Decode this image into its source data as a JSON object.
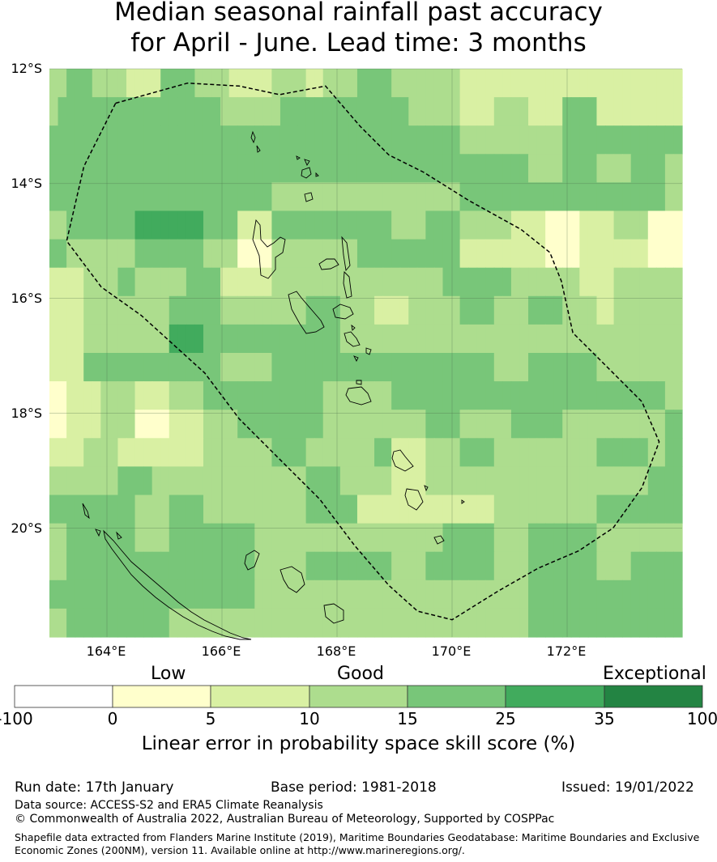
{
  "title": {
    "line1": "Median seasonal rainfall past accuracy",
    "line2": "for April - June. Lead time: 3 months"
  },
  "map": {
    "lat_labels": [
      "12°S",
      "14°S",
      "16°S",
      "18°S",
      "20°S"
    ],
    "lon_labels": [
      "164°E",
      "166°E",
      "168°E",
      "170°E",
      "172°E"
    ],
    "lon_range": [
      163.0,
      174.0
    ],
    "lat_range": [
      -21.9,
      -12.0
    ],
    "grid_rows": [
      [
        3,
        3,
        4,
        4,
        4,
        3,
        3,
        3,
        3,
        2,
        2,
        2,
        2,
        4,
        4,
        4,
        4,
        3,
        3,
        3,
        3,
        2,
        2,
        2,
        2,
        2,
        3,
        3,
        3,
        3,
        2,
        2,
        3,
        3,
        3,
        3,
        4,
        4,
        4,
        4,
        3,
        3,
        3,
        3,
        3,
        3,
        3,
        3,
        2,
        2,
        2,
        2,
        2,
        2,
        2,
        2,
        2,
        2,
        2,
        2,
        2,
        2,
        2,
        2,
        2,
        2,
        2,
        2,
        2,
        2,
        2,
        2,
        2,
        2
      ],
      [
        3,
        4,
        4,
        4,
        4,
        4,
        4,
        4,
        4,
        4,
        4,
        4,
        4,
        4,
        4,
        4,
        4,
        4,
        4,
        4,
        3,
        3,
        3,
        3,
        3,
        3,
        3,
        4,
        4,
        4,
        4,
        4,
        4,
        4,
        4,
        4,
        4,
        4,
        4,
        4,
        4,
        4,
        3,
        3,
        3,
        3,
        3,
        3,
        2,
        2,
        2,
        2,
        3,
        3,
        3,
        3,
        2,
        2,
        2,
        2,
        4,
        4,
        4,
        4,
        2,
        2,
        2,
        2,
        2,
        2,
        2,
        2,
        2,
        2
      ],
      [
        4,
        4,
        4,
        4,
        4,
        4,
        4,
        4,
        4,
        4,
        4,
        4,
        4,
        4,
        4,
        4,
        4,
        4,
        4,
        4,
        4,
        4,
        4,
        4,
        4,
        4,
        4,
        4,
        4,
        4,
        4,
        4,
        4,
        4,
        4,
        4,
        4,
        4,
        4,
        4,
        4,
        4,
        4,
        4,
        4,
        4,
        4,
        4,
        3,
        3,
        3,
        3,
        3,
        3,
        3,
        3,
        3,
        3,
        3,
        3,
        4,
        4,
        4,
        4,
        4,
        4,
        4,
        4,
        4,
        4,
        4,
        4,
        4,
        4
      ],
      [
        4,
        4,
        4,
        4,
        4,
        4,
        4,
        4,
        4,
        4,
        4,
        4,
        4,
        4,
        4,
        4,
        4,
        4,
        4,
        4,
        4,
        4,
        4,
        4,
        4,
        4,
        4,
        4,
        4,
        4,
        4,
        4,
        4,
        4,
        4,
        4,
        4,
        4,
        4,
        4,
        4,
        4,
        4,
        4,
        4,
        4,
        4,
        4,
        4,
        4,
        4,
        4,
        4,
        4,
        4,
        4,
        3,
        3,
        3,
        3,
        4,
        4,
        4,
        4,
        3,
        3,
        3,
        3,
        4,
        4,
        4,
        4,
        3,
        3
      ],
      [
        4,
        4,
        4,
        4,
        4,
        4,
        4,
        4,
        4,
        4,
        4,
        4,
        4,
        4,
        4,
        4,
        4,
        4,
        4,
        4,
        4,
        4,
        4,
        4,
        4,
        4,
        3,
        3,
        3,
        3,
        3,
        3,
        3,
        3,
        3,
        3,
        3,
        3,
        3,
        3,
        3,
        3,
        3,
        3,
        3,
        3,
        3,
        3,
        4,
        4,
        4,
        4,
        4,
        4,
        4,
        4,
        4,
        4,
        4,
        4,
        4,
        4,
        4,
        4,
        4,
        4,
        4,
        4,
        4,
        4,
        4,
        4,
        3,
        3
      ],
      [
        3,
        3,
        4,
        4,
        4,
        4,
        4,
        4,
        4,
        4,
        5,
        5,
        5,
        5,
        5,
        5,
        5,
        5,
        4,
        4,
        4,
        4,
        2,
        2,
        2,
        2,
        4,
        4,
        4,
        4,
        4,
        4,
        4,
        4,
        4,
        4,
        4,
        4,
        4,
        4,
        3,
        3,
        3,
        3,
        4,
        4,
        4,
        4,
        3,
        3,
        3,
        3,
        3,
        3,
        2,
        2,
        2,
        2,
        1,
        1,
        1,
        1,
        2,
        2,
        2,
        2,
        3,
        3,
        3,
        3,
        1,
        1,
        1,
        1
      ],
      [
        4,
        4,
        3,
        3,
        3,
        3,
        3,
        3,
        3,
        3,
        4,
        4,
        4,
        4,
        4,
        4,
        4,
        4,
        3,
        3,
        3,
        3,
        1,
        1,
        1,
        1,
        3,
        3,
        3,
        3,
        3,
        3,
        3,
        3,
        3,
        3,
        4,
        4,
        4,
        4,
        4,
        4,
        4,
        4,
        4,
        4,
        4,
        4,
        2,
        2,
        2,
        2,
        2,
        2,
        2,
        2,
        2,
        2,
        1,
        1,
        1,
        1,
        2,
        2,
        2,
        2,
        2,
        2,
        2,
        2,
        1,
        1,
        1,
        1
      ],
      [
        2,
        2,
        2,
        2,
        3,
        3,
        3,
        3,
        4,
        4,
        3,
        3,
        3,
        3,
        3,
        3,
        4,
        4,
        4,
        4,
        2,
        2,
        2,
        2,
        2,
        2,
        3,
        3,
        3,
        3,
        3,
        3,
        3,
        3,
        3,
        3,
        3,
        3,
        3,
        3,
        3,
        3,
        3,
        3,
        3,
        3,
        4,
        4,
        4,
        4,
        4,
        4,
        4,
        4,
        3,
        3,
        3,
        3,
        3,
        3,
        3,
        3,
        2,
        2,
        2,
        2,
        3,
        3,
        3,
        3,
        3,
        3,
        3,
        3
      ],
      [
        2,
        2,
        2,
        2,
        3,
        3,
        3,
        3,
        3,
        3,
        3,
        3,
        3,
        3,
        4,
        4,
        4,
        4,
        4,
        4,
        3,
        3,
        3,
        3,
        3,
        3,
        3,
        3,
        3,
        3,
        4,
        4,
        4,
        4,
        3,
        3,
        3,
        3,
        2,
        2,
        2,
        2,
        3,
        3,
        3,
        3,
        3,
        3,
        4,
        4,
        4,
        4,
        3,
        3,
        3,
        3,
        4,
        4,
        4,
        4,
        3,
        3,
        3,
        3,
        2,
        2,
        3,
        3,
        3,
        3,
        3,
        3,
        3,
        3
      ],
      [
        2,
        2,
        2,
        2,
        3,
        3,
        3,
        3,
        3,
        3,
        3,
        3,
        3,
        3,
        5,
        5,
        5,
        5,
        4,
        4,
        4,
        4,
        4,
        4,
        4,
        4,
        4,
        4,
        4,
        4,
        4,
        4,
        4,
        4,
        3,
        3,
        3,
        3,
        3,
        3,
        3,
        3,
        3,
        3,
        3,
        3,
        3,
        3,
        3,
        3,
        3,
        3,
        3,
        3,
        3,
        3,
        3,
        3,
        3,
        3,
        3,
        3,
        3,
        3,
        3,
        3,
        3,
        3,
        3,
        3,
        3,
        3,
        3,
        3
      ],
      [
        2,
        2,
        2,
        2,
        4,
        4,
        4,
        4,
        4,
        4,
        4,
        4,
        4,
        4,
        4,
        4,
        4,
        4,
        4,
        4,
        3,
        3,
        3,
        3,
        3,
        3,
        4,
        4,
        4,
        4,
        4,
        4,
        4,
        4,
        4,
        4,
        4,
        4,
        4,
        4,
        4,
        4,
        4,
        4,
        4,
        4,
        4,
        4,
        4,
        4,
        4,
        4,
        3,
        3,
        3,
        3,
        4,
        4,
        4,
        4,
        4,
        4,
        4,
        4,
        3,
        3,
        3,
        3,
        3,
        3,
        3,
        3,
        3,
        3
      ],
      [
        1,
        1,
        2,
        2,
        2,
        2,
        3,
        3,
        3,
        3,
        2,
        2,
        2,
        2,
        3,
        3,
        3,
        3,
        4,
        4,
        4,
        4,
        4,
        4,
        4,
        4,
        4,
        4,
        4,
        4,
        4,
        4,
        3,
        3,
        3,
        3,
        3,
        3,
        3,
        3,
        4,
        4,
        4,
        4,
        4,
        4,
        4,
        4,
        4,
        4,
        4,
        4,
        4,
        4,
        4,
        4,
        4,
        4,
        4,
        4,
        4,
        4,
        4,
        4,
        4,
        4,
        4,
        4,
        4,
        4,
        4,
        4,
        3,
        3
      ],
      [
        1,
        1,
        2,
        2,
        2,
        2,
        3,
        3,
        3,
        3,
        1,
        1,
        1,
        1,
        2,
        2,
        2,
        2,
        3,
        3,
        3,
        3,
        4,
        4,
        4,
        4,
        4,
        4,
        4,
        4,
        4,
        4,
        3,
        3,
        3,
        3,
        3,
        3,
        3,
        3,
        3,
        3,
        3,
        3,
        4,
        4,
        4,
        4,
        3,
        3,
        3,
        3,
        3,
        3,
        4,
        4,
        4,
        4,
        4,
        4,
        3,
        3,
        3,
        3,
        3,
        3,
        3,
        3,
        3,
        3,
        3,
        3,
        4,
        4
      ],
      [
        2,
        2,
        2,
        2,
        3,
        3,
        3,
        3,
        2,
        2,
        2,
        2,
        2,
        2,
        2,
        2,
        2,
        2,
        3,
        3,
        3,
        3,
        3,
        3,
        3,
        3,
        4,
        4,
        4,
        4,
        3,
        3,
        3,
        3,
        3,
        3,
        3,
        3,
        4,
        4,
        2,
        2,
        2,
        2,
        3,
        3,
        3,
        3,
        4,
        4,
        4,
        4,
        3,
        3,
        3,
        3,
        3,
        3,
        3,
        3,
        3,
        3,
        3,
        3,
        4,
        4,
        4,
        4,
        4,
        4,
        3,
        3,
        4,
        4
      ],
      [
        3,
        3,
        3,
        3,
        3,
        3,
        3,
        3,
        4,
        4,
        4,
        4,
        3,
        3,
        3,
        3,
        3,
        3,
        3,
        3,
        3,
        3,
        3,
        3,
        3,
        3,
        3,
        3,
        3,
        3,
        4,
        4,
        4,
        4,
        3,
        3,
        3,
        3,
        3,
        3,
        2,
        2,
        2,
        2,
        3,
        3,
        3,
        3,
        3,
        3,
        3,
        3,
        3,
        3,
        3,
        3,
        3,
        3,
        3,
        3,
        3,
        3,
        3,
        3,
        3,
        3,
        3,
        3,
        3,
        3,
        4,
        4,
        4,
        4
      ],
      [
        4,
        4,
        4,
        4,
        4,
        4,
        4,
        4,
        4,
        4,
        3,
        3,
        3,
        3,
        4,
        4,
        4,
        4,
        3,
        3,
        3,
        3,
        3,
        3,
        3,
        3,
        3,
        3,
        3,
        3,
        4,
        4,
        4,
        4,
        4,
        4,
        2,
        2,
        2,
        2,
        2,
        2,
        2,
        2,
        2,
        2,
        2,
        2,
        2,
        2,
        2,
        2,
        3,
        3,
        3,
        3,
        3,
        3,
        3,
        3,
        3,
        3,
        3,
        3,
        4,
        4,
        4,
        4,
        4,
        4,
        4,
        4,
        4,
        4
      ],
      [
        3,
        3,
        4,
        4,
        4,
        4,
        4,
        4,
        4,
        4,
        3,
        3,
        3,
        3,
        4,
        4,
        4,
        4,
        4,
        4,
        4,
        4,
        4,
        4,
        3,
        3,
        3,
        3,
        3,
        3,
        3,
        3,
        3,
        3,
        3,
        3,
        3,
        3,
        3,
        3,
        3,
        3,
        3,
        3,
        3,
        3,
        4,
        4,
        4,
        4,
        4,
        4,
        3,
        3,
        3,
        3,
        4,
        4,
        4,
        4,
        4,
        4,
        4,
        4,
        3,
        3,
        3,
        3,
        3,
        3,
        3,
        3,
        3,
        3
      ],
      [
        3,
        3,
        4,
        4,
        4,
        4,
        4,
        4,
        4,
        4,
        4,
        4,
        4,
        4,
        4,
        4,
        4,
        4,
        4,
        4,
        4,
        4,
        4,
        4,
        3,
        3,
        3,
        3,
        3,
        3,
        4,
        4,
        4,
        4,
        4,
        4,
        4,
        4,
        4,
        4,
        3,
        3,
        3,
        3,
        4,
        4,
        4,
        4,
        4,
        4,
        4,
        4,
        3,
        3,
        3,
        3,
        4,
        4,
        4,
        4,
        4,
        4,
        4,
        4,
        3,
        3,
        3,
        3,
        4,
        4,
        4,
        4,
        4,
        4
      ],
      [
        4,
        4,
        4,
        4,
        4,
        4,
        4,
        4,
        4,
        4,
        4,
        4,
        4,
        4,
        4,
        4,
        4,
        4,
        4,
        4,
        4,
        4,
        4,
        4,
        3,
        3,
        3,
        3,
        3,
        3,
        3,
        3,
        3,
        3,
        3,
        3,
        3,
        3,
        3,
        3,
        3,
        3,
        3,
        3,
        3,
        3,
        3,
        3,
        3,
        3,
        3,
        3,
        3,
        3,
        3,
        3,
        4,
        4,
        4,
        4,
        4,
        4,
        4,
        4,
        4,
        4,
        4,
        4,
        4,
        4,
        4,
        4,
        4,
        4
      ],
      [
        3,
        3,
        4,
        4,
        4,
        4,
        4,
        4,
        4,
        4,
        4,
        4,
        4,
        4,
        3,
        3,
        3,
        3,
        3,
        3,
        3,
        3,
        3,
        3,
        3,
        3,
        3,
        3,
        3,
        3,
        3,
        3,
        3,
        3,
        3,
        3,
        3,
        3,
        3,
        3,
        3,
        3,
        3,
        3,
        3,
        3,
        3,
        3,
        3,
        3,
        3,
        3,
        3,
        3,
        3,
        3,
        4,
        4,
        4,
        4,
        4,
        4,
        4,
        4,
        4,
        4,
        4,
        4,
        4,
        4,
        4,
        4,
        4,
        4
      ]
    ],
    "boundary_lonlat": [
      [
        164.15,
        -12.6
      ],
      [
        165.4,
        -12.25
      ],
      [
        166.3,
        -12.3
      ],
      [
        167.0,
        -12.45
      ],
      [
        167.8,
        -12.3
      ],
      [
        168.4,
        -13.0
      ],
      [
        168.9,
        -13.5
      ],
      [
        169.5,
        -13.8
      ],
      [
        170.3,
        -14.3
      ],
      [
        171.2,
        -14.8
      ],
      [
        171.7,
        -15.2
      ],
      [
        171.9,
        -15.7
      ],
      [
        172.1,
        -16.6
      ],
      [
        172.6,
        -17.1
      ],
      [
        173.3,
        -17.8
      ],
      [
        173.6,
        -18.5
      ],
      [
        173.3,
        -19.3
      ],
      [
        172.8,
        -20.0
      ],
      [
        172.2,
        -20.4
      ],
      [
        171.5,
        -20.7
      ],
      [
        170.8,
        -21.1
      ],
      [
        170.0,
        -21.6
      ],
      [
        169.4,
        -21.45
      ],
      [
        168.9,
        -21.0
      ],
      [
        168.3,
        -20.3
      ],
      [
        167.7,
        -19.5
      ],
      [
        167.1,
        -18.9
      ],
      [
        166.3,
        -18.1
      ],
      [
        165.7,
        -17.3
      ],
      [
        164.6,
        -16.3
      ],
      [
        163.9,
        -15.8
      ],
      [
        163.3,
        -15.0
      ],
      [
        163.6,
        -13.7
      ],
      [
        164.15,
        -12.6
      ]
    ]
  },
  "colorbar": {
    "categories": [
      "Low",
      "Good",
      "Exceptional"
    ],
    "ticks": [
      "-100",
      "0",
      "5",
      "10",
      "15",
      "25",
      "35",
      "100"
    ],
    "colors": [
      "#ffffff",
      "#ffffcc",
      "#d9f0a3",
      "#addd8e",
      "#78c679",
      "#41ab5d",
      "#238443"
    ],
    "title": "Linear error in probability space skill score (%)"
  },
  "footer": {
    "run_date": "Run date: 17th January",
    "base_period": "Base period: 1981-2018",
    "issued": "Issued: 19/01/2022",
    "data_source": "Data source: ACCESS-S2 and ERA5 Climate Reanalysis",
    "copyright": "© Commonwealth of Australia 2022, Australian Bureau of Meteorology, Supported by COSPPac",
    "shapefile_line1": "Shapefile data extracted from Flanders Marine Institute (2019), Maritime Boundaries Geodatabase: Maritime Boundaries and Exclusive",
    "shapefile_line2": "Economic Zones (200NM), version 11. Available online at http://www.marineregions.org/."
  }
}
